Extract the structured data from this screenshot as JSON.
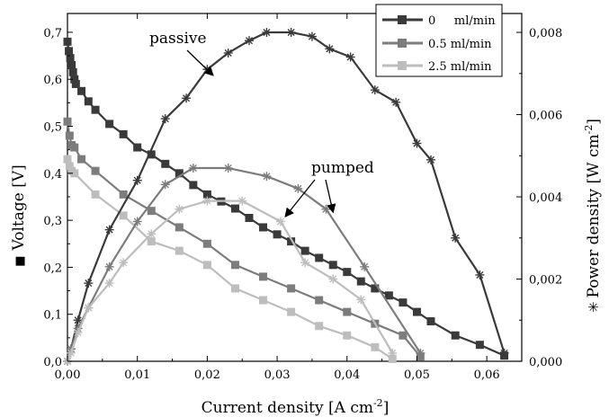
{
  "chart_data": {
    "type": "line",
    "xlabel": "Current density [A cm",
    "xlabel_sup": "-2",
    "xlabel_end": "]",
    "ylabel_left": "Voltage [V]",
    "ylabel_right": "Power density [W cm",
    "ylabel_right_sup": "-2",
    "ylabel_right_end": "]",
    "left_marker_glyph": "■",
    "right_marker_glyph": "✳",
    "xlim": [
      0,
      0.065
    ],
    "ylim_left": [
      0,
      0.74
    ],
    "ylim_right": [
      0,
      0.00846
    ],
    "x_ticks": [
      0.0,
      0.01,
      0.02,
      0.03,
      0.04,
      0.05,
      0.06
    ],
    "x_tick_labels": [
      "0,00",
      "0,01",
      "0,02",
      "0,03",
      "0,04",
      "0,05",
      "0,06"
    ],
    "y_left_ticks": [
      0.0,
      0.1,
      0.2,
      0.3,
      0.4,
      0.5,
      0.6,
      0.7
    ],
    "y_left_tick_labels": [
      "0,0",
      "0,1",
      "0,2",
      "0,3",
      "0,4",
      "0,5",
      "0,6",
      "0,7"
    ],
    "y_right_ticks": [
      0.0,
      0.002,
      0.004,
      0.006,
      0.008
    ],
    "y_right_tick_labels": [
      "0,000",
      "0,002",
      "0,004",
      "0,006",
      "0,008"
    ],
    "legend_position": "top-right",
    "legend": [
      {
        "label": "0     ml/min",
        "color": "#3a3a3a"
      },
      {
        "label": "0.5 ml/min",
        "color": "#7c7c7c"
      },
      {
        "label": "2.5 ml/min",
        "color": "#bdbdbd"
      }
    ],
    "annotations": [
      {
        "text": "passive"
      },
      {
        "text": "pumped"
      }
    ],
    "series": [
      {
        "name": "0     ml/min",
        "axis": "left",
        "marker": "square",
        "color": "#3a3a3a",
        "x": [
          0.0,
          0.0002,
          0.0004,
          0.0006,
          0.0008,
          0.001,
          0.0012,
          0.002,
          0.003,
          0.004,
          0.006,
          0.008,
          0.01,
          0.012,
          0.014,
          0.016,
          0.018,
          0.02,
          0.022,
          0.024,
          0.026,
          0.028,
          0.03,
          0.032,
          0.034,
          0.036,
          0.038,
          0.04,
          0.042,
          0.044,
          0.046,
          0.048,
          0.05,
          0.052,
          0.0555,
          0.059,
          0.0625
        ],
        "y": [
          0.68,
          0.66,
          0.645,
          0.63,
          0.615,
          0.6,
          0.59,
          0.575,
          0.553,
          0.535,
          0.505,
          0.483,
          0.455,
          0.44,
          0.42,
          0.4,
          0.375,
          0.355,
          0.34,
          0.325,
          0.305,
          0.285,
          0.27,
          0.255,
          0.235,
          0.22,
          0.205,
          0.19,
          0.17,
          0.155,
          0.14,
          0.125,
          0.105,
          0.085,
          0.055,
          0.035,
          0.012
        ]
      },
      {
        "name": "0.5 ml/min",
        "axis": "left",
        "marker": "square",
        "color": "#7c7c7c",
        "x": [
          0.0,
          0.0003,
          0.0006,
          0.001,
          0.002,
          0.004,
          0.008,
          0.012,
          0.016,
          0.02,
          0.024,
          0.028,
          0.032,
          0.036,
          0.04,
          0.044,
          0.048,
          0.0505
        ],
        "y": [
          0.51,
          0.48,
          0.46,
          0.455,
          0.43,
          0.405,
          0.355,
          0.32,
          0.285,
          0.25,
          0.205,
          0.18,
          0.155,
          0.13,
          0.105,
          0.08,
          0.055,
          0.01
        ]
      },
      {
        "name": "2.5 ml/min",
        "axis": "left",
        "marker": "square",
        "color": "#bdbdbd",
        "x": [
          0.0,
          0.0003,
          0.0006,
          0.001,
          0.004,
          0.008,
          0.012,
          0.016,
          0.02,
          0.024,
          0.028,
          0.032,
          0.036,
          0.04,
          0.044,
          0.0465
        ],
        "y": [
          0.43,
          0.415,
          0.405,
          0.4,
          0.355,
          0.31,
          0.255,
          0.235,
          0.205,
          0.155,
          0.13,
          0.105,
          0.075,
          0.055,
          0.03,
          0.005
        ]
      },
      {
        "name": "0     ml/min",
        "axis": "right",
        "marker": "star",
        "color": "#3a3a3a",
        "x": [
          0.0,
          0.0005,
          0.0015,
          0.003,
          0.006,
          0.01,
          0.014,
          0.017,
          0.02,
          0.023,
          0.026,
          0.0285,
          0.032,
          0.035,
          0.0375,
          0.0405,
          0.044,
          0.047,
          0.05,
          0.052,
          0.0555,
          0.059,
          0.0625
        ],
        "y": [
          0.0,
          0.0003,
          0.001,
          0.0019,
          0.0032,
          0.0044,
          0.0059,
          0.0064,
          0.0071,
          0.0075,
          0.0078,
          0.008,
          0.008,
          0.0079,
          0.0076,
          0.0074,
          0.0066,
          0.0063,
          0.0053,
          0.0049,
          0.003,
          0.0021,
          0.0002
        ]
      },
      {
        "name": "0.5 ml/min",
        "axis": "right",
        "marker": "star",
        "color": "#7c7c7c",
        "x": [
          0.0,
          0.0005,
          0.0015,
          0.003,
          0.006,
          0.01,
          0.014,
          0.018,
          0.023,
          0.0285,
          0.033,
          0.037,
          0.0425,
          0.0505
        ],
        "y": [
          0.0,
          0.0003,
          0.0008,
          0.0013,
          0.0023,
          0.0034,
          0.0043,
          0.0047,
          0.0047,
          0.0045,
          0.0042,
          0.0037,
          0.0023,
          0.0002
        ]
      },
      {
        "name": "2.5 ml/min",
        "axis": "right",
        "marker": "star",
        "color": "#bdbdbd",
        "x": [
          0.0,
          0.0005,
          0.0015,
          0.003,
          0.006,
          0.008,
          0.012,
          0.016,
          0.02,
          0.025,
          0.0305,
          0.034,
          0.038,
          0.042,
          0.0465
        ],
        "y": [
          0.0,
          0.0002,
          0.0007,
          0.0013,
          0.0019,
          0.0024,
          0.0031,
          0.0037,
          0.0039,
          0.0039,
          0.0034,
          0.0024,
          0.002,
          0.0015,
          0.0002
        ]
      }
    ]
  }
}
